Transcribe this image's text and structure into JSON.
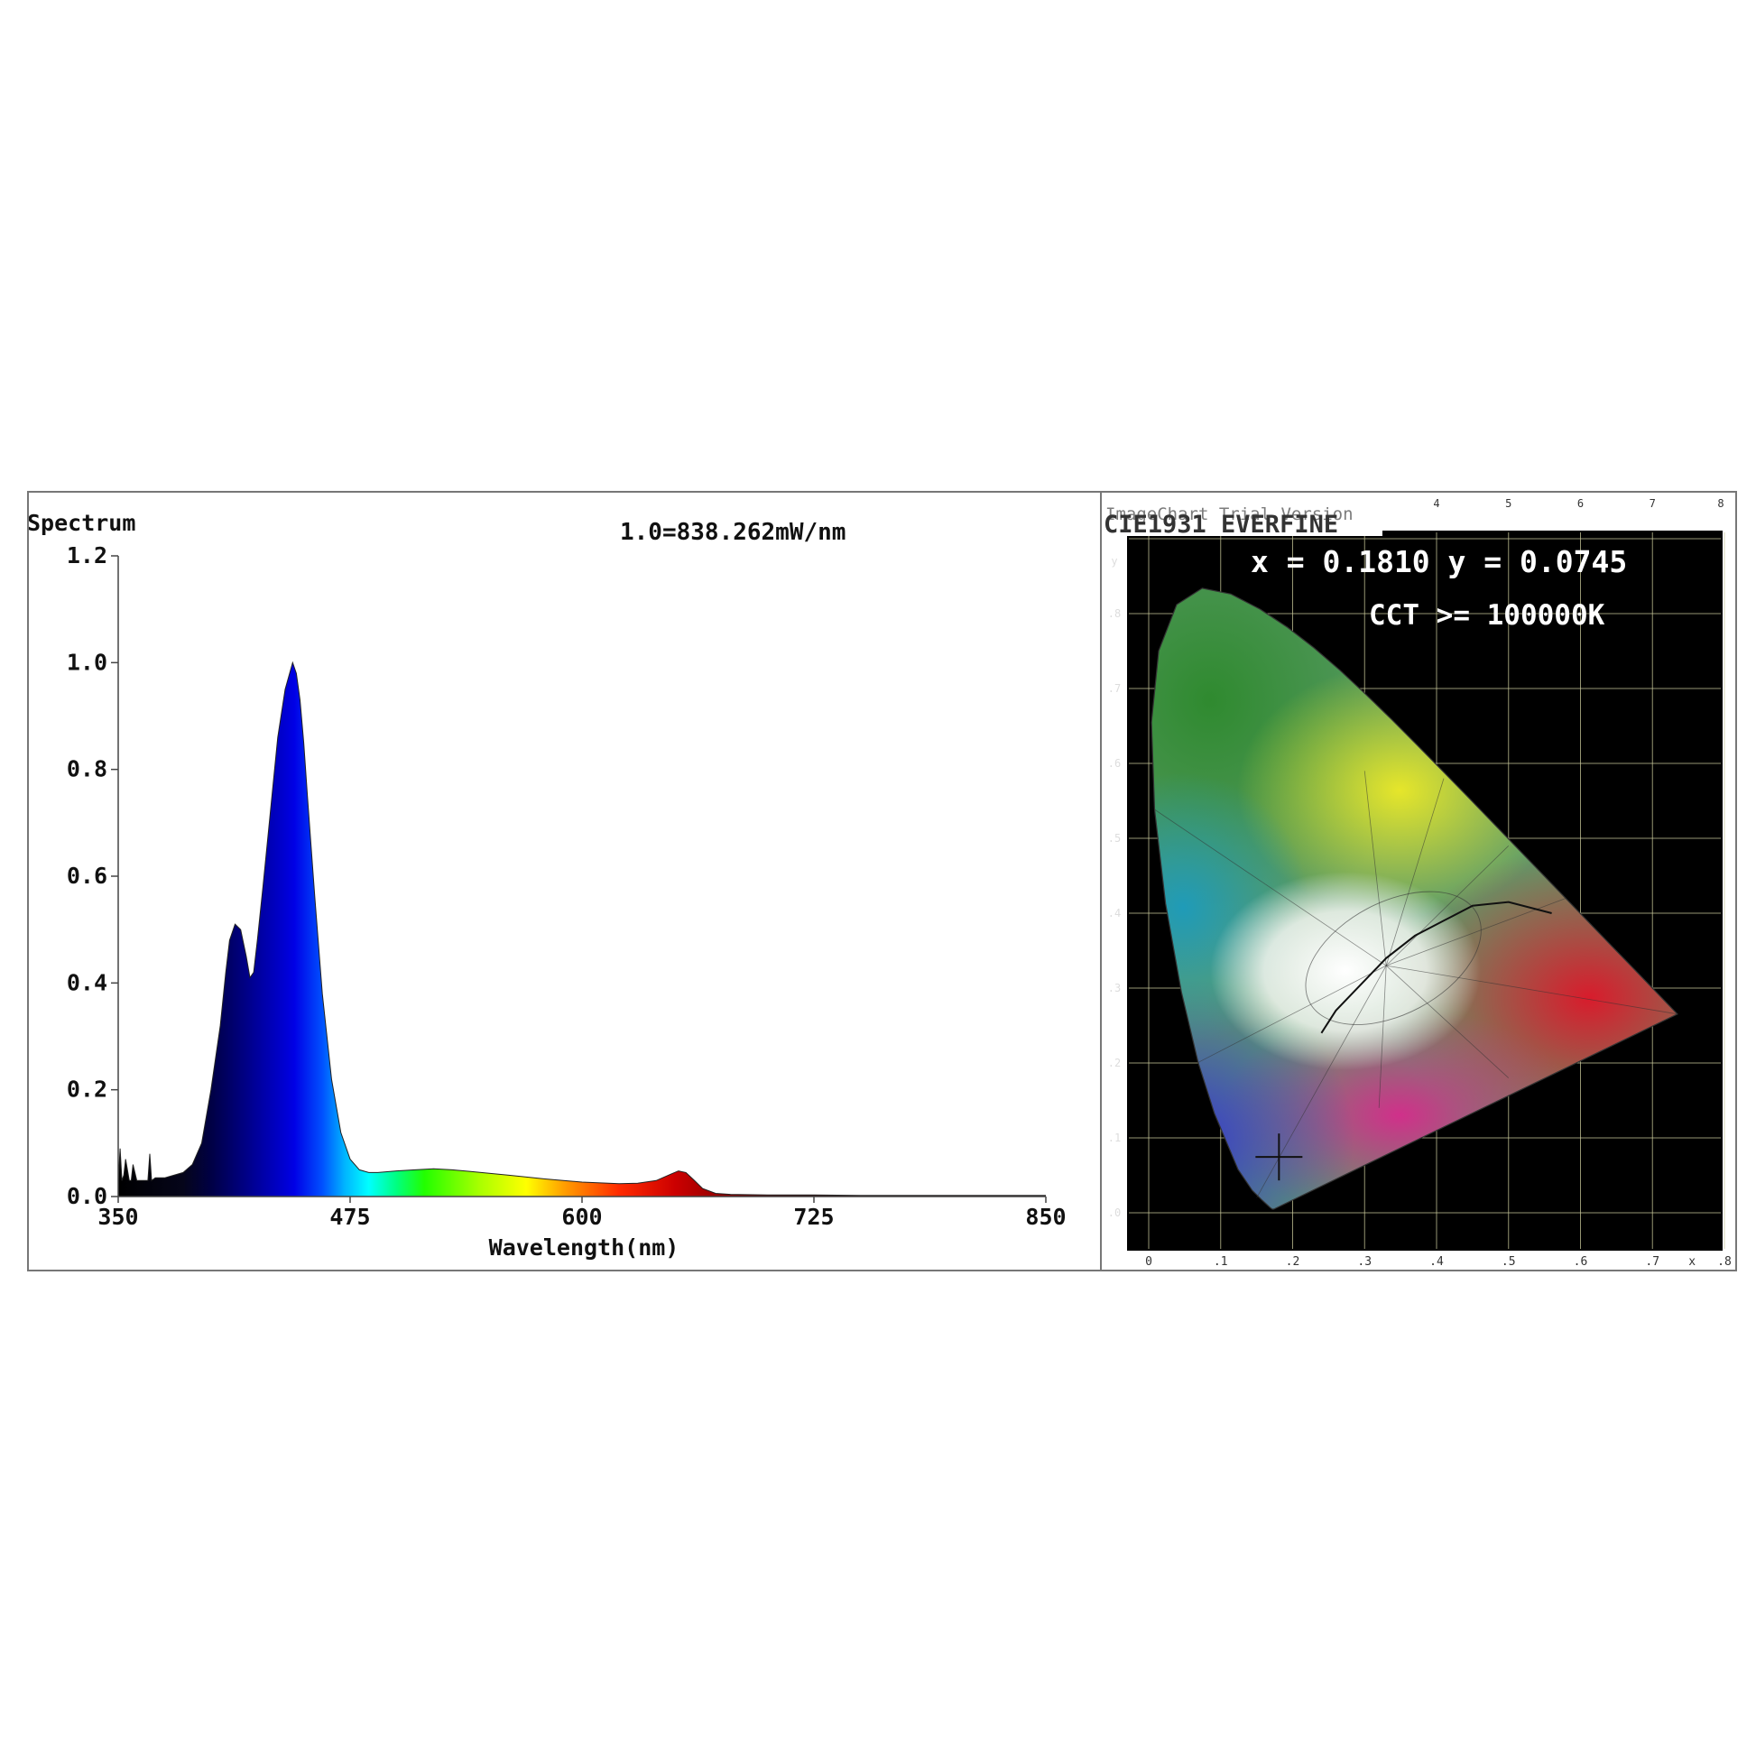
{
  "chart_data": [
    {
      "type": "area",
      "title": "Spectrum",
      "annotation": "1.0=838.262mW/nm",
      "xlabel": "Wavelength(nm)",
      "ylabel": "",
      "xlim": [
        350,
        850
      ],
      "ylim": [
        0,
        1.2
      ],
      "x_ticks": [
        "350",
        "475",
        "600",
        "725",
        "850"
      ],
      "y_ticks": [
        "0.0",
        "0.2",
        "0.4",
        "0.6",
        "0.8",
        "1.0",
        "1.2"
      ],
      "grid": false,
      "fill": "wavelength-colored spectrum gradient",
      "series": [
        {
          "x": [
            350,
            351,
            352,
            353,
            354,
            356,
            357,
            358,
            360,
            364,
            366,
            367,
            368,
            370,
            375,
            380,
            385,
            390,
            395,
            400,
            405,
            408,
            410,
            413,
            416,
            419,
            421,
            423,
            425,
            428,
            432,
            436,
            440,
            444,
            446,
            448,
            450,
            452,
            456,
            460,
            465,
            470,
            475,
            480,
            485,
            490,
            500,
            510,
            520,
            530,
            540,
            560,
            580,
            600,
            620,
            630,
            640,
            648,
            652,
            656,
            660,
            665,
            672,
            680,
            700,
            725,
            750,
            800,
            850
          ],
          "y": [
            0.03,
            0.09,
            0.03,
            0.04,
            0.07,
            0.03,
            0.03,
            0.06,
            0.03,
            0.03,
            0.03,
            0.08,
            0.03,
            0.035,
            0.035,
            0.04,
            0.045,
            0.06,
            0.1,
            0.2,
            0.32,
            0.42,
            0.48,
            0.51,
            0.5,
            0.45,
            0.41,
            0.42,
            0.48,
            0.58,
            0.72,
            0.86,
            0.95,
            1.0,
            0.98,
            0.93,
            0.85,
            0.75,
            0.56,
            0.38,
            0.22,
            0.12,
            0.07,
            0.05,
            0.045,
            0.045,
            0.048,
            0.05,
            0.052,
            0.05,
            0.047,
            0.04,
            0.033,
            0.027,
            0.024,
            0.025,
            0.03,
            0.042,
            0.048,
            0.045,
            0.032,
            0.015,
            0.006,
            0.004,
            0.003,
            0.003,
            0.002,
            0.002,
            0.002
          ]
        }
      ]
    },
    {
      "type": "chromaticity-diagram",
      "header": "CIE1931 EVERFINE",
      "overlay": "ImageChart Trial Version",
      "readout_xy": "x = 0.1810 y = 0.0745",
      "readout_cct": "CCT >= 100000K",
      "point": {
        "x": 0.181,
        "y": 0.0745
      },
      "xlim": [
        0,
        0.8
      ],
      "ylim": [
        0,
        0.9
      ],
      "x_ticks": [
        "0",
        ".1",
        ".2",
        ".3",
        ".4",
        ".5",
        ".6",
        ".7",
        "x",
        ".8"
      ],
      "top_ticks": [
        "4",
        "5",
        "6",
        "7",
        "8"
      ],
      "y_ticks": [
        ".0",
        ".1",
        ".2",
        ".3",
        ".4",
        ".5",
        ".6",
        ".7",
        ".8",
        "y"
      ],
      "background": "#000000",
      "grid_color": "#c8c89a"
    }
  ]
}
